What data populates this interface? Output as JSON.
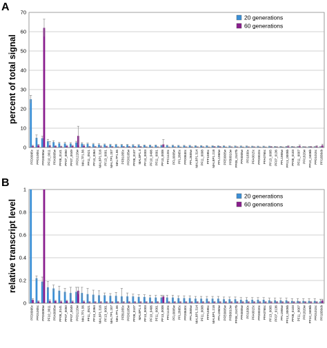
{
  "colors": {
    "gen20": "#3b8fd6",
    "gen60": "#8a1d8e",
    "grid": "#a6a6a6",
    "axis": "#7f7f7f"
  },
  "chart_data": [
    {
      "type": "bar",
      "panel_label": "A",
      "ylabel": "percent of total signal",
      "ylim": [
        0,
        70
      ],
      "yticks": [
        0,
        10,
        20,
        30,
        40,
        50,
        60,
        70
      ],
      "grid": true,
      "legend": "top-right",
      "categories": [
        "PFD0995c",
        "PFD1005c",
        "PFD0090w",
        "PF10_0011",
        "PFA0005w",
        "PF08_0141",
        "PF07_0050",
        "PF07_0049",
        "PFD1220w",
        "MAL7P1.56",
        "PF11_0521",
        "PF13_0364",
        "MAL8P1.316",
        "PF13_0001",
        "MAL7P1.207",
        "MAL7P1.55",
        "PFB1055c",
        "PFD0105w",
        "PF08_0107",
        "MAL8P1.4",
        "PF13_0003",
        "PF10_0406",
        "PF11_0001",
        "PF13_0008",
        "PFC1120c",
        "PFL0005w",
        "PFL2665c",
        "PFD0630c",
        "PFL2655w",
        "MAL8P1.314",
        "PF11_0008",
        "PFF1595c",
        "MAL8P1.218",
        "PFL1960w",
        "PFE0005w",
        "PFB0010w",
        "PF08_0107b",
        "PFI0005w",
        "PFI1830c",
        "PFA0015c",
        "PFD0020c",
        "PFA0765c",
        "PF13_0005",
        "PF07_0136",
        "PFL1955w",
        "PF13_0005b",
        "PF08_0103",
        "PF11_0007",
        "PFI1820w",
        "PF10_0406b",
        "PFD1015c",
        "PFI1830cb"
      ],
      "series": [
        {
          "name": "20 generations",
          "color": "#3b8fd6",
          "values": [
            25,
            5,
            4.8,
            3.2,
            2.8,
            2.2,
            2.1,
            2.0,
            2.6,
            2.0,
            1.9,
            1.7,
            1.5,
            1.5,
            1.4,
            1.4,
            1.3,
            1.3,
            1.2,
            1.2,
            1.1,
            1.1,
            1.1,
            1.0,
            1.0,
            1.0,
            0.9,
            0.9,
            0.9,
            0.8,
            0.8,
            0.8,
            0.7,
            0.7,
            0.7,
            0.6,
            0.6,
            0.6,
            0.6,
            0.5,
            0.5,
            0.5,
            0.5,
            0.4,
            0.4,
            0.4,
            0.4,
            0.3,
            0.3,
            0.3,
            0.3,
            0.3
          ],
          "errors": [
            2,
            1.5,
            1,
            1,
            0.7,
            0.5,
            0.6,
            0.5,
            0.6,
            0.5,
            0.4,
            0.4,
            0.4,
            0.3,
            0.3,
            0.3,
            0.3,
            0.3,
            0.3,
            0.3,
            0.2,
            0.2,
            0.2,
            0.2,
            0.2,
            0.2,
            0.2,
            0.2,
            0.2,
            0.2,
            0.2,
            0.2,
            0.2,
            0.2,
            0.2,
            0.2,
            0.2,
            0.2,
            0.2,
            0.2,
            0.2,
            0.2,
            0.2,
            0.2,
            0.2,
            0.2,
            0.2,
            0.2,
            0.2,
            0.2,
            0.2,
            0.2
          ]
        },
        {
          "name": "60 generations",
          "color": "#8a1d8e",
          "values": [
            0.8,
            1.2,
            62,
            1.1,
            0.7,
            0.5,
            0.8,
            0.8,
            6,
            1.0,
            0.4,
            0.4,
            0.5,
            0.5,
            0.4,
            0.3,
            0.4,
            0.4,
            0.4,
            0.4,
            0.3,
            0.3,
            0.3,
            1.6,
            0.2,
            0.3,
            0.2,
            0.3,
            0.3,
            0.3,
            0.3,
            0.2,
            0.4,
            0.4,
            0.2,
            0.3,
            0.3,
            0.2,
            0.3,
            0.3,
            0.2,
            0.2,
            0.4,
            0.3,
            0.2,
            0.6,
            0.3,
            0.7,
            0.3,
            0.4,
            0.6,
            1.1
          ],
          "errors": [
            0.3,
            0.4,
            4.5,
            2,
            0.3,
            0.2,
            0.3,
            0.3,
            5,
            0.5,
            0.2,
            0.2,
            0.3,
            0.2,
            0.2,
            0.1,
            0.2,
            0.2,
            0.2,
            0.2,
            0.1,
            0.1,
            0.1,
            2.5,
            0.1,
            0.1,
            0.1,
            0.1,
            0.1,
            0.1,
            0.1,
            0.1,
            0.2,
            0.2,
            0.1,
            0.1,
            0.1,
            0.1,
            0.1,
            0.1,
            0.1,
            0.1,
            0.2,
            0.1,
            0.1,
            0.4,
            0.1,
            0.6,
            0.1,
            0.2,
            0.3,
            0.6
          ]
        }
      ]
    },
    {
      "type": "bar",
      "panel_label": "B",
      "ylabel": "relative transcript level",
      "ylim": [
        0,
        1
      ],
      "yticks": [
        0,
        0.2,
        0.4,
        0.6,
        0.8,
        1
      ],
      "grid": true,
      "legend": "top-right",
      "categories": [
        "PFD0995c",
        "PFD1005c",
        "PFD0090w",
        "PF10_0011",
        "PFA0005w",
        "PF08_0141",
        "PF07_0050",
        "PF07_0049",
        "PFD1220w",
        "MAL7P1.56",
        "PF11_0521",
        "PF13_0364",
        "MAL8P1.316",
        "PF13_0001",
        "MAL7P1.207",
        "MAL7P1.55",
        "PFB1055c",
        "PFD0105w",
        "PF08_0107",
        "MAL8P1.4",
        "PF13_0003",
        "PF10_0406",
        "PF11_0001",
        "PF13_0008",
        "PFC1120c",
        "PFL0005w",
        "PFL2665c",
        "PFD0630c",
        "PFL2655w",
        "MAL8P1.314",
        "PF11_0008",
        "PFF1595c",
        "MAL8P1.218",
        "PFL1960w",
        "PFE0005w",
        "PFB0010w",
        "PF08_0107b",
        "PFI0005w",
        "PFI1830c",
        "PFA0015c",
        "PFD0020c",
        "PFA0765c",
        "PF13_0005",
        "PF07_0136",
        "PFL1955w",
        "PF13_0005b",
        "PF08_0103",
        "PF11_0007",
        "PFI1820w",
        "PF10_0406b",
        "PFD1015c",
        "PFI1830cb"
      ],
      "series": [
        {
          "name": "20 generations",
          "color": "#3b8fd6",
          "values": [
            1,
            0.22,
            0.19,
            0.14,
            0.13,
            0.11,
            0.1,
            0.09,
            0.1,
            0.09,
            0.08,
            0.075,
            0.07,
            0.07,
            0.065,
            0.065,
            0.06,
            0.06,
            0.06,
            0.055,
            0.055,
            0.05,
            0.05,
            0.05,
            0.05,
            0.05,
            0.045,
            0.045,
            0.045,
            0.04,
            0.04,
            0.04,
            0.04,
            0.04,
            0.035,
            0.035,
            0.035,
            0.03,
            0.03,
            0.03,
            0.03,
            0.03,
            0.025,
            0.025,
            0.025,
            0.025,
            0.02,
            0.02,
            0.02,
            0.02,
            0.02,
            0.015
          ],
          "errors": [
            0.05,
            0.02,
            0.04,
            0.05,
            0.03,
            0.04,
            0.03,
            0.05,
            0.04,
            0.05,
            0.05,
            0.04,
            0.04,
            0.02,
            0.02,
            0.03,
            0.07,
            0.03,
            0.02,
            0.02,
            0.02,
            0.02,
            0.02,
            0.02,
            0.02,
            0.02,
            0.02,
            0.02,
            0.02,
            0.02,
            0.02,
            0.02,
            0.02,
            0.02,
            0.02,
            0.02,
            0.02,
            0.02,
            0.02,
            0.02,
            0.02,
            0.02,
            0.02,
            0.02,
            0.02,
            0.02,
            0.02,
            0.02,
            0.02,
            0.02,
            0.02,
            0.02
          ]
        },
        {
          "name": "60 generations",
          "color": "#8a1d8e",
          "values": [
            0.03,
            0.015,
            1,
            0.02,
            0.02,
            0.015,
            0.02,
            0.015,
            0.11,
            0.015,
            0.01,
            0.01,
            0.01,
            0.01,
            0.01,
            0.01,
            0.01,
            0.01,
            0.01,
            0.01,
            0.01,
            0.01,
            0.01,
            0.06,
            0.01,
            0.01,
            0.01,
            0.01,
            0.01,
            0.01,
            0.01,
            0.01,
            0.01,
            0.01,
            0.01,
            0.01,
            0.01,
            0.01,
            0.01,
            0.01,
            0.01,
            0.01,
            0.01,
            0.01,
            0.01,
            0.01,
            0.01,
            0.01,
            0.01,
            0.01,
            0.01,
            0.025
          ],
          "errors": [
            0.01,
            0.005,
            0,
            0.01,
            0.005,
            0.005,
            0.005,
            0.005,
            0.03,
            0.005,
            0.005,
            0.005,
            0.005,
            0.005,
            0.005,
            0.005,
            0.005,
            0.005,
            0.005,
            0.005,
            0.005,
            0.005,
            0.005,
            0.01,
            0.005,
            0.005,
            0.005,
            0.005,
            0.005,
            0.005,
            0.005,
            0.005,
            0.005,
            0.005,
            0.005,
            0.005,
            0.005,
            0.005,
            0.005,
            0.005,
            0.005,
            0.005,
            0.005,
            0.005,
            0.005,
            0.005,
            0.005,
            0.005,
            0.005,
            0.005,
            0.005,
            0.01
          ]
        }
      ]
    }
  ]
}
